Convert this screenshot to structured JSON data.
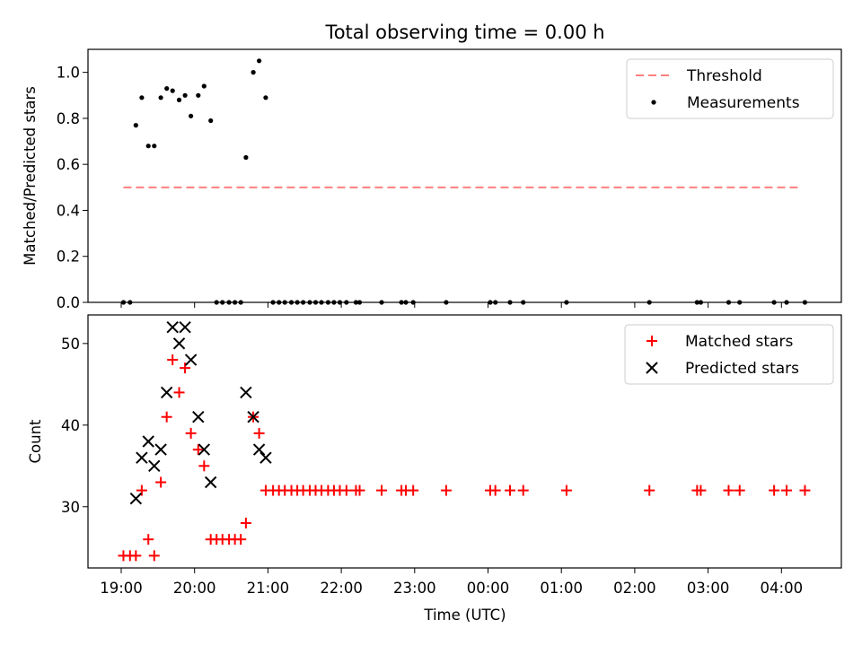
{
  "chart_data": [
    {
      "type": "scatter",
      "title": "Total observing time = 0.00 h",
      "xlabel": "",
      "ylabel": "Matched/Predicted stars",
      "ylim": [
        0,
        1.1
      ],
      "yticks": [
        "0.0",
        "0.2",
        "0.4",
        "0.6",
        "0.8",
        "1.0"
      ],
      "legend_position": "top-right",
      "series": [
        {
          "name": "Threshold",
          "kind": "dashed-line",
          "color": "#ff7f7f",
          "x": [
            19.03,
            4.28
          ],
          "y": [
            0.5,
            0.5
          ]
        },
        {
          "name": "Measurements",
          "kind": "points",
          "color": "#000000",
          "points": [
            [
              19.03,
              0
            ],
            [
              19.12,
              0
            ],
            [
              19.2,
              0.77
            ],
            [
              19.28,
              0.89
            ],
            [
              19.37,
              0.68
            ],
            [
              19.45,
              0.68
            ],
            [
              19.54,
              0.89
            ],
            [
              19.62,
              0.93
            ],
            [
              19.7,
              0.92
            ],
            [
              19.79,
              0.88
            ],
            [
              19.87,
              0.9
            ],
            [
              19.95,
              0.81
            ],
            [
              20.05,
              0.9
            ],
            [
              20.13,
              0.94
            ],
            [
              20.22,
              0.79
            ],
            [
              20.3,
              0
            ],
            [
              20.38,
              0
            ],
            [
              20.47,
              0
            ],
            [
              20.55,
              0
            ],
            [
              20.63,
              0
            ],
            [
              20.7,
              0.63
            ],
            [
              20.8,
              1.0
            ],
            [
              20.88,
              1.05
            ],
            [
              20.97,
              0.89
            ],
            [
              21.07,
              0
            ],
            [
              21.15,
              0
            ],
            [
              21.23,
              0
            ],
            [
              21.32,
              0
            ],
            [
              21.4,
              0
            ],
            [
              21.48,
              0
            ],
            [
              21.57,
              0
            ],
            [
              21.65,
              0
            ],
            [
              21.73,
              0
            ],
            [
              21.82,
              0
            ],
            [
              21.9,
              0
            ],
            [
              21.98,
              0
            ],
            [
              22.07,
              0
            ],
            [
              22.2,
              0
            ],
            [
              22.25,
              0
            ],
            [
              22.55,
              0
            ],
            [
              22.82,
              0
            ],
            [
              22.88,
              0
            ],
            [
              22.98,
              0
            ],
            [
              23.43,
              0
            ],
            [
              0.03,
              0
            ],
            [
              0.1,
              0
            ],
            [
              0.3,
              0
            ],
            [
              0.48,
              0
            ],
            [
              1.07,
              0
            ],
            [
              2.2,
              0
            ],
            [
              2.85,
              0
            ],
            [
              2.9,
              0
            ],
            [
              3.28,
              0
            ],
            [
              3.43,
              0
            ],
            [
              3.9,
              0
            ],
            [
              4.07,
              0
            ],
            [
              4.32,
              0
            ]
          ]
        }
      ]
    },
    {
      "type": "scatter",
      "title": "",
      "xlabel": "Time (UTC)",
      "ylabel": "Count",
      "ylim": [
        22.5,
        53.5
      ],
      "yticks": [
        "30",
        "40",
        "50"
      ],
      "xticks": [
        "19:00",
        "20:00",
        "21:00",
        "22:00",
        "23:00",
        "00:00",
        "01:00",
        "02:00",
        "03:00",
        "04:00"
      ],
      "legend_position": "top-right",
      "series": [
        {
          "name": "Matched stars",
          "marker": "+",
          "color": "#ff0000",
          "points": [
            [
              19.03,
              24
            ],
            [
              19.12,
              24
            ],
            [
              19.2,
              24
            ],
            [
              19.28,
              32
            ],
            [
              19.37,
              26
            ],
            [
              19.45,
              24
            ],
            [
              19.54,
              33
            ],
            [
              19.62,
              41
            ],
            [
              19.7,
              48
            ],
            [
              19.79,
              44
            ],
            [
              19.87,
              47
            ],
            [
              19.95,
              39
            ],
            [
              20.05,
              37
            ],
            [
              20.13,
              35
            ],
            [
              20.22,
              26
            ],
            [
              20.3,
              26
            ],
            [
              20.38,
              26
            ],
            [
              20.47,
              26
            ],
            [
              20.55,
              26
            ],
            [
              20.63,
              26
            ],
            [
              20.7,
              28
            ],
            [
              20.8,
              41
            ],
            [
              20.88,
              39
            ],
            [
              20.97,
              32
            ],
            [
              21.07,
              32
            ],
            [
              21.15,
              32
            ],
            [
              21.23,
              32
            ],
            [
              21.32,
              32
            ],
            [
              21.4,
              32
            ],
            [
              21.48,
              32
            ],
            [
              21.57,
              32
            ],
            [
              21.65,
              32
            ],
            [
              21.73,
              32
            ],
            [
              21.82,
              32
            ],
            [
              21.9,
              32
            ],
            [
              21.98,
              32
            ],
            [
              22.07,
              32
            ],
            [
              22.2,
              32
            ],
            [
              22.25,
              32
            ],
            [
              22.55,
              32
            ],
            [
              22.82,
              32
            ],
            [
              22.88,
              32
            ],
            [
              22.98,
              32
            ],
            [
              23.43,
              32
            ],
            [
              0.03,
              32
            ],
            [
              0.1,
              32
            ],
            [
              0.3,
              32
            ],
            [
              0.48,
              32
            ],
            [
              1.07,
              32
            ],
            [
              2.2,
              32
            ],
            [
              2.85,
              32
            ],
            [
              2.9,
              32
            ],
            [
              3.28,
              32
            ],
            [
              3.43,
              32
            ],
            [
              3.9,
              32
            ],
            [
              4.07,
              32
            ],
            [
              4.32,
              32
            ]
          ]
        },
        {
          "name": "Predicted stars",
          "marker": "x",
          "color": "#000000",
          "points": [
            [
              19.2,
              31
            ],
            [
              19.28,
              36
            ],
            [
              19.37,
              38
            ],
            [
              19.45,
              35
            ],
            [
              19.54,
              37
            ],
            [
              19.62,
              44
            ],
            [
              19.7,
              52
            ],
            [
              19.79,
              50
            ],
            [
              19.87,
              52
            ],
            [
              19.95,
              48
            ],
            [
              20.05,
              41
            ],
            [
              20.13,
              37
            ],
            [
              20.22,
              33
            ],
            [
              20.7,
              44
            ],
            [
              20.8,
              41
            ],
            [
              20.88,
              37
            ],
            [
              20.97,
              36
            ]
          ]
        }
      ]
    }
  ]
}
